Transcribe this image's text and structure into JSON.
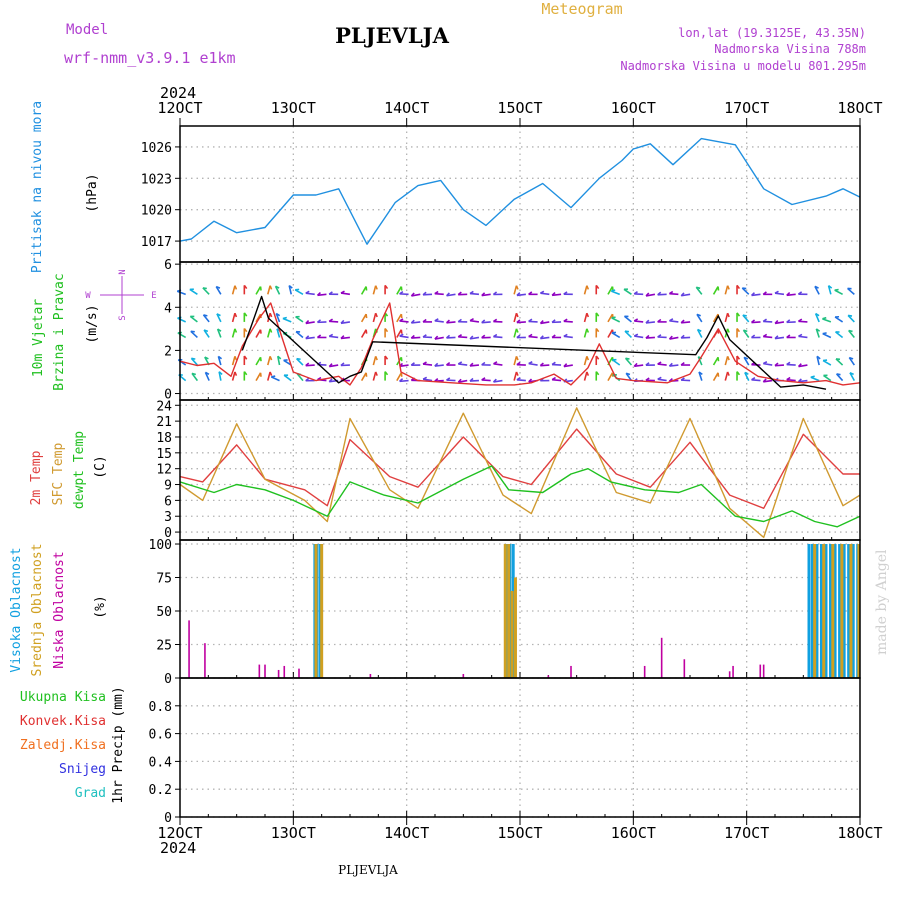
{
  "header": {
    "model_label": "Model",
    "model_name": "wrf-nmm_v3.9.1 e1km",
    "station": "PLJEVLJA",
    "product": "Meteogram",
    "lonlat": "lon,lat (19.3125E, 43.35N)",
    "elevation": "Nadmorska Visina 788m",
    "model_elevation": "Nadmorska Visina u modelu 801.295m",
    "credit": "made by Angel",
    "footer_station": "PLJEVLJA"
  },
  "colors": {
    "purple": "#b040d0",
    "gold": "#e0b040",
    "pressure": "#2090e0",
    "temp2m": "#e04040",
    "sfc": "#d09a30",
    "dew": "#20c020",
    "high_cloud": "#10a0e0",
    "mid_cloud": "#d0a020",
    "low_cloud": "#c000a0",
    "total_precip": "#20c020",
    "conv_precip": "#e03030",
    "frozen_precip": "#f07020",
    "snow": "#3030e0",
    "hail": "#20c0c0"
  },
  "time_axis": {
    "year": "2024",
    "ticks": [
      "12OCT",
      "13OCT",
      "14OCT",
      "15OCT",
      "16OCT",
      "17OCT",
      "18OCT"
    ]
  },
  "chart_data": [
    {
      "type": "line",
      "id": "pressure",
      "ylabel_lines": [
        "Pritisak na nivou mora",
        "(hPa)"
      ],
      "ylim": [
        1015,
        1028
      ],
      "yticks": [
        1017,
        1020,
        1023,
        1026
      ],
      "grid": true,
      "series": [
        {
          "color_key": "pressure",
          "x": [
            0,
            0.1,
            0.3,
            0.5,
            0.75,
            1.0,
            1.2,
            1.4,
            1.65,
            1.9,
            2.1,
            2.3,
            2.5,
            2.7,
            2.95,
            3.2,
            3.45,
            3.7,
            3.9,
            4.0,
            4.15,
            4.35,
            4.6,
            4.9,
            5.15,
            5.4,
            5.7,
            5.85,
            6.0
          ],
          "y": [
            1017.0,
            1017.2,
            1018.9,
            1017.8,
            1018.3,
            1021.4,
            1021.4,
            1022.0,
            1016.7,
            1020.7,
            1022.3,
            1022.8,
            1020.0,
            1018.5,
            1021.0,
            1022.5,
            1020.2,
            1023.0,
            1024.7,
            1025.8,
            1026.3,
            1024.3,
            1026.8,
            1026.2,
            1022.0,
            1020.5,
            1021.3,
            1022.0,
            1021.2
          ]
        }
      ]
    },
    {
      "type": "line",
      "id": "wind",
      "ylabel_lines": [
        "10m Vjetar",
        "Brzina i Pravac",
        "(m/s)"
      ],
      "compass": {
        "n": "N",
        "s": "S",
        "w": "W",
        "e": "E"
      },
      "ylim": [
        -0.3,
        6.1
      ],
      "yticks": [
        0,
        2,
        4,
        6
      ],
      "grid": true,
      "series": [
        {
          "name": "speed",
          "color_key": "conv_precip",
          "x": [
            0,
            0.15,
            0.3,
            0.45,
            0.55,
            0.7,
            0.8,
            1.0,
            1.2,
            1.4,
            1.5,
            1.6,
            1.7,
            1.85,
            1.95,
            2.1,
            2.4,
            2.7,
            2.95,
            3.1,
            3.3,
            3.45,
            3.6,
            3.7,
            3.85,
            4.0,
            4.3,
            4.5,
            4.6,
            4.75,
            4.9,
            5.1,
            5.3,
            5.5,
            5.7,
            5.85,
            6.0
          ],
          "y": [
            1.5,
            1.3,
            1.4,
            0.8,
            2.2,
            3.5,
            4.2,
            1.0,
            0.6,
            0.8,
            0.4,
            1.2,
            2.5,
            4.2,
            1.0,
            0.6,
            0.5,
            0.4,
            0.4,
            0.5,
            0.9,
            0.4,
            1.2,
            2.3,
            0.7,
            0.6,
            0.5,
            0.9,
            1.7,
            3.0,
            1.5,
            0.8,
            0.6,
            0.5,
            0.6,
            0.4,
            0.5
          ]
        },
        {
          "name": "gust",
          "color_key": "black",
          "x": [
            0.55,
            0.62,
            0.72,
            0.78,
            1.4,
            1.5,
            1.6,
            1.7,
            4.55,
            4.65,
            4.75,
            4.85,
            5.3,
            5.5,
            5.7
          ],
          "y": [
            2.0,
            3.0,
            4.5,
            3.5,
            0.5,
            0.8,
            1.0,
            2.4,
            1.8,
            2.6,
            3.6,
            2.5,
            0.3,
            0.4,
            0.2
          ]
        }
      ]
    },
    {
      "type": "line",
      "id": "temperature",
      "ylabel_lines": [
        "2m Temp",
        "SFC Temp",
        "dewpt Temp",
        "(C)"
      ],
      "ylim": [
        -1.5,
        25
      ],
      "yticks": [
        0,
        3,
        6,
        9,
        12,
        15,
        18,
        21,
        24
      ],
      "grid": true,
      "series": [
        {
          "name": "2m Temp",
          "color_key": "temp2m",
          "x": [
            0,
            0.2,
            0.5,
            0.75,
            1.1,
            1.3,
            1.5,
            1.85,
            2.1,
            2.5,
            2.85,
            3.1,
            3.5,
            3.85,
            4.15,
            4.5,
            4.85,
            5.15,
            5.5,
            5.85,
            6.0
          ],
          "y": [
            10.5,
            9.5,
            16.5,
            10.0,
            8.0,
            5.0,
            17.5,
            10.5,
            8.5,
            18.0,
            10.5,
            9.0,
            19.5,
            11.0,
            8.5,
            17.0,
            7.0,
            4.5,
            18.5,
            11.0,
            11.0
          ]
        },
        {
          "name": "SFC Temp",
          "color_key": "sfc",
          "x": [
            0,
            0.2,
            0.5,
            0.75,
            1.1,
            1.3,
            1.5,
            1.85,
            2.1,
            2.5,
            2.85,
            3.1,
            3.5,
            3.85,
            4.15,
            4.5,
            4.85,
            5.15,
            5.5,
            5.85,
            6.0
          ],
          "y": [
            9.0,
            6.0,
            20.5,
            10.0,
            6.0,
            2.0,
            21.5,
            8.0,
            4.5,
            22.5,
            7.0,
            3.5,
            23.5,
            7.5,
            5.5,
            21.5,
            4.5,
            -1.0,
            21.5,
            5.0,
            7.0
          ]
        },
        {
          "name": "dewpt Temp",
          "color_key": "dew",
          "x": [
            0,
            0.3,
            0.5,
            0.75,
            1.0,
            1.3,
            1.5,
            1.8,
            2.1,
            2.5,
            2.75,
            2.9,
            3.2,
            3.45,
            3.6,
            3.8,
            4.1,
            4.4,
            4.6,
            4.9,
            5.15,
            5.4,
            5.6,
            5.8,
            6.0
          ],
          "y": [
            9.5,
            7.5,
            9.0,
            8.0,
            6.0,
            3.0,
            9.5,
            7.0,
            5.5,
            10.0,
            12.5,
            8.0,
            7.5,
            11.0,
            12.0,
            9.5,
            8.0,
            7.5,
            9.0,
            3.0,
            2.0,
            4.0,
            2.0,
            1.0,
            3.0
          ]
        }
      ]
    },
    {
      "type": "bar",
      "id": "cloud",
      "ylabel_lines": [
        "Visoka Oblacnost",
        "Srednja Oblacnost",
        "Niska Oblacnost",
        "(%)"
      ],
      "ylim": [
        0,
        103
      ],
      "yticks": [
        0,
        25,
        50,
        75,
        100
      ],
      "grid": true,
      "series": [
        {
          "name": "Visoka Oblacnost",
          "color_key": "high_cloud",
          "x": [
            1.19,
            1.21,
            1.24,
            2.88,
            2.91,
            2.94,
            5.55,
            5.58,
            5.62,
            5.66,
            5.7,
            5.74,
            5.78,
            5.82,
            5.86,
            5.9,
            5.94,
            5.98
          ],
          "values": [
            100,
            100,
            100,
            100,
            100,
            100,
            100,
            100,
            100,
            100,
            100,
            100,
            100,
            100,
            100,
            100,
            100,
            100
          ]
        },
        {
          "name": "Srednja Oblacnost",
          "color_key": "mid_cloud",
          "x": [
            1.2,
            1.25,
            2.87,
            2.9,
            2.93,
            2.96,
            5.6,
            5.68,
            5.76,
            5.84,
            5.92,
            5.99
          ],
          "values": [
            100,
            100,
            100,
            100,
            65,
            75,
            100,
            100,
            100,
            100,
            100,
            100
          ]
        },
        {
          "name": "Niska Oblacnost",
          "color_key": "low_cloud",
          "x": [
            0.08,
            0.22,
            0.7,
            0.75,
            0.87,
            0.92,
            1.05,
            1.68,
            2.5,
            3.25,
            3.45,
            4.1,
            4.25,
            4.45,
            4.85,
            4.88,
            5.12,
            5.15
          ],
          "values": [
            43,
            26,
            10,
            10,
            6,
            9,
            7,
            3,
            3,
            2,
            9,
            9,
            30,
            14,
            5,
            9,
            10,
            10
          ]
        }
      ]
    },
    {
      "type": "line",
      "id": "precip",
      "ylabel_lines": [
        "1hr Precip (mm)"
      ],
      "legend": [
        "Ukupna Kisa",
        "Konvek.Kisa",
        "Zaledj.Kisa",
        "Snijeg",
        "Grad"
      ],
      "ylim": [
        0,
        1.0
      ],
      "yticks": [
        0,
        0.2,
        0.4,
        0.6,
        0.8
      ],
      "yticklabels": [
        "0",
        "0.2",
        "0.4",
        "0.6",
        "0.8"
      ],
      "grid": true,
      "series": []
    }
  ]
}
